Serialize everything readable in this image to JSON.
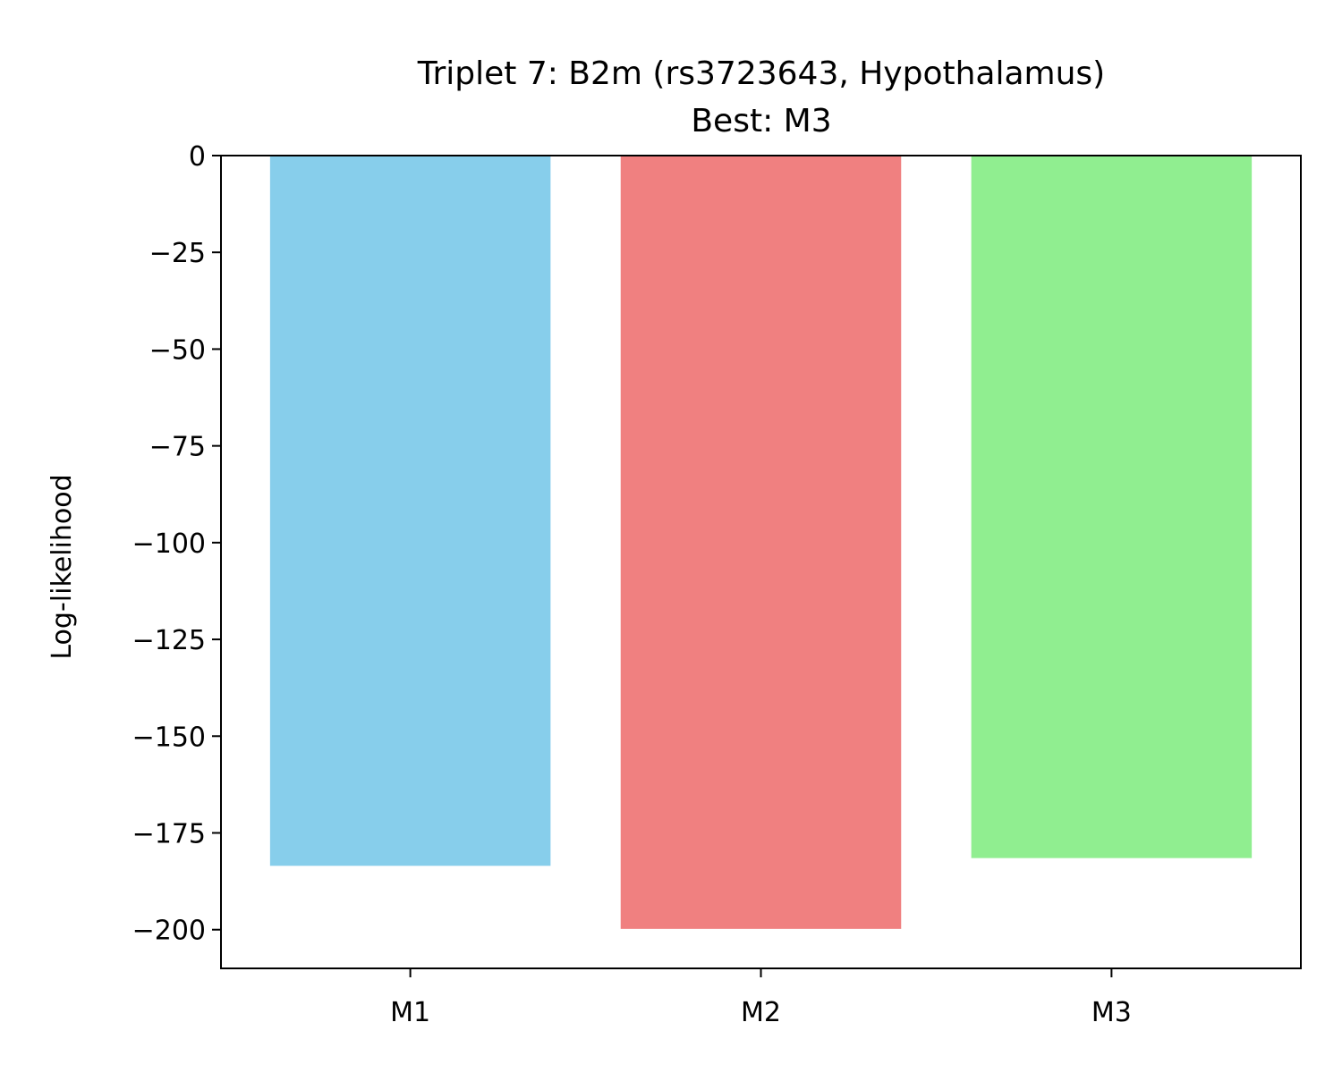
{
  "chart_data": {
    "type": "bar",
    "title": "Triplet 7: B2m (rs3723643, Hypothalamus)",
    "subtitle": "Best: M3",
    "xlabel": "",
    "ylabel": "Log-likelihood",
    "categories": [
      "M1",
      "M2",
      "M3"
    ],
    "values": [
      -183.5,
      -199.8,
      -181.5
    ],
    "colors": [
      "#87CEEB",
      "#F08080",
      "#90EE90"
    ],
    "ylim": [
      -210,
      0
    ],
    "yticks": [
      0,
      -25,
      -50,
      -75,
      -100,
      -125,
      -150,
      -175,
      -200
    ],
    "ytick_labels": [
      "0",
      "−25",
      "−50",
      "−75",
      "−100",
      "−125",
      "−150",
      "−175",
      "−200"
    ],
    "grid": false,
    "legend": "none"
  }
}
